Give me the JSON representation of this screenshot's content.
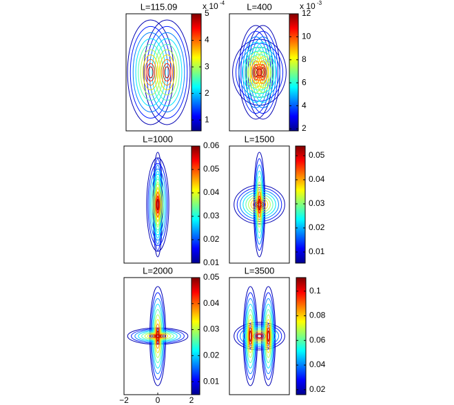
{
  "chart_data": [
    {
      "type": "contour",
      "title": "L=115.09",
      "scale_base": "x 10",
      "scale_exponent": "-4",
      "clim": [
        0.59,
        5
      ],
      "cticks": [
        1,
        2,
        3,
        4,
        5
      ]
    },
    {
      "type": "contour",
      "title": "L=400",
      "scale_base": "x 10",
      "scale_exponent": "-3",
      "clim": [
        1.82,
        12
      ],
      "cticks": [
        2,
        4,
        6,
        8,
        10,
        12
      ]
    },
    {
      "type": "contour",
      "title": "L=1000",
      "clim": [
        0.01,
        0.06
      ],
      "cticks": [
        0.01,
        0.02,
        0.03,
        0.04,
        0.05,
        0.06
      ]
    },
    {
      "type": "contour",
      "title": "L=1500",
      "clim": [
        0.0054,
        0.054
      ],
      "cticks": [
        0.01,
        0.02,
        0.03,
        0.04,
        0.05
      ]
    },
    {
      "type": "contour",
      "title": "L=2000",
      "clim": [
        0.005,
        0.05
      ],
      "cticks": [
        0.01,
        0.02,
        0.03,
        0.04,
        0.05
      ],
      "xlim": [
        -2,
        2
      ],
      "xticks": [
        {
          "value": -2,
          "label": "−2"
        },
        0,
        2
      ]
    },
    {
      "type": "contour",
      "title": "L=3500",
      "clim": [
        0.016,
        0.111
      ],
      "cticks": [
        0.02,
        0.04,
        0.06,
        0.08,
        0.1
      ]
    }
  ]
}
